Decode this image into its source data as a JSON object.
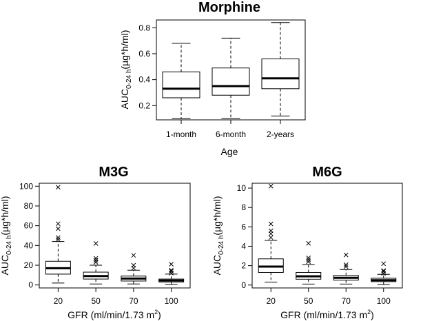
{
  "charts": [
    {
      "type": "box",
      "title": "Morphine",
      "xlabel": "Age",
      "ylabel_main": "AUC",
      "ylabel_sub": "0-24 h",
      "ylabel_unit": "(µg*h/ml)",
      "categories": [
        "1-month",
        "6-month",
        "2-years"
      ],
      "yticks": [
        "0.2",
        "0.4",
        "0.6",
        "0.8"
      ],
      "ylim": [
        0.09,
        0.86
      ],
      "boxes": [
        {
          "whisker_low": 0.1,
          "q1": 0.26,
          "median": 0.33,
          "q3": 0.46,
          "whisker_high": 0.68,
          "outliers": []
        },
        {
          "whisker_low": 0.1,
          "q1": 0.28,
          "median": 0.35,
          "q3": 0.49,
          "whisker_high": 0.72,
          "outliers": []
        },
        {
          "whisker_low": 0.12,
          "q1": 0.33,
          "median": 0.41,
          "q3": 0.56,
          "whisker_high": 0.84,
          "outliers": []
        }
      ]
    },
    {
      "type": "box",
      "title": "M3G",
      "xlabel": "GFR (ml/min/1.73 m",
      "xlabel_sup": "2",
      "xlabel_tail": ")",
      "ylabel_main": "AUC",
      "ylabel_sub": "0-24 h",
      "ylabel_unit": "(µg*h/ml)",
      "categories": [
        "20",
        "50",
        "70",
        "100"
      ],
      "yticks": [
        "0",
        "20",
        "40",
        "60",
        "80",
        "100"
      ],
      "ylim": [
        -3,
        103
      ],
      "boxes": [
        {
          "whisker_low": 2,
          "q1": 11,
          "median": 17,
          "q3": 24,
          "whisker_high": 44,
          "outliers": [
            46,
            48,
            57,
            62,
            99
          ]
        },
        {
          "whisker_low": 1,
          "q1": 6,
          "median": 9,
          "q3": 13,
          "whisker_high": 20,
          "outliers": [
            23,
            25,
            27,
            42
          ]
        },
        {
          "whisker_low": 1,
          "q1": 4,
          "median": 6.5,
          "q3": 9,
          "whisker_high": 15,
          "outliers": [
            17,
            20,
            30
          ]
        },
        {
          "whisker_low": 0.5,
          "q1": 3,
          "median": 4.5,
          "q3": 6,
          "whisker_high": 11,
          "outliers": [
            12,
            14,
            15,
            21
          ]
        }
      ]
    },
    {
      "type": "box",
      "title": "M6G",
      "xlabel": "GFR (ml/min/1.73 m",
      "xlabel_sup": "2",
      "xlabel_tail": ")",
      "ylabel_main": "AUC",
      "ylabel_sub": "0-24 h",
      "ylabel_unit": "(µg*h/ml)",
      "categories": [
        "20",
        "50",
        "70",
        "100"
      ],
      "yticks": [
        "0",
        "2",
        "4",
        "6",
        "8",
        "10"
      ],
      "ylim": [
        -0.3,
        10.5
      ],
      "boxes": [
        {
          "whisker_low": 0.3,
          "q1": 1.3,
          "median": 1.9,
          "q3": 2.7,
          "whisker_high": 4.6,
          "outliers": [
            4.9,
            5.3,
            5.6,
            6.3,
            10.2
          ]
        },
        {
          "whisker_low": 0.1,
          "q1": 0.6,
          "median": 0.9,
          "q3": 1.3,
          "whisker_high": 2.1,
          "outliers": [
            2.4,
            2.6,
            2.8,
            4.3
          ]
        },
        {
          "whisker_low": 0.1,
          "q1": 0.5,
          "median": 0.75,
          "q3": 1.0,
          "whisker_high": 1.6,
          "outliers": [
            1.9,
            2.1,
            3.1
          ]
        },
        {
          "whisker_low": 0.05,
          "q1": 0.35,
          "median": 0.5,
          "q3": 0.7,
          "whisker_high": 1.1,
          "outliers": [
            1.2,
            1.4,
            1.5,
            2.2
          ]
        }
      ]
    }
  ]
}
